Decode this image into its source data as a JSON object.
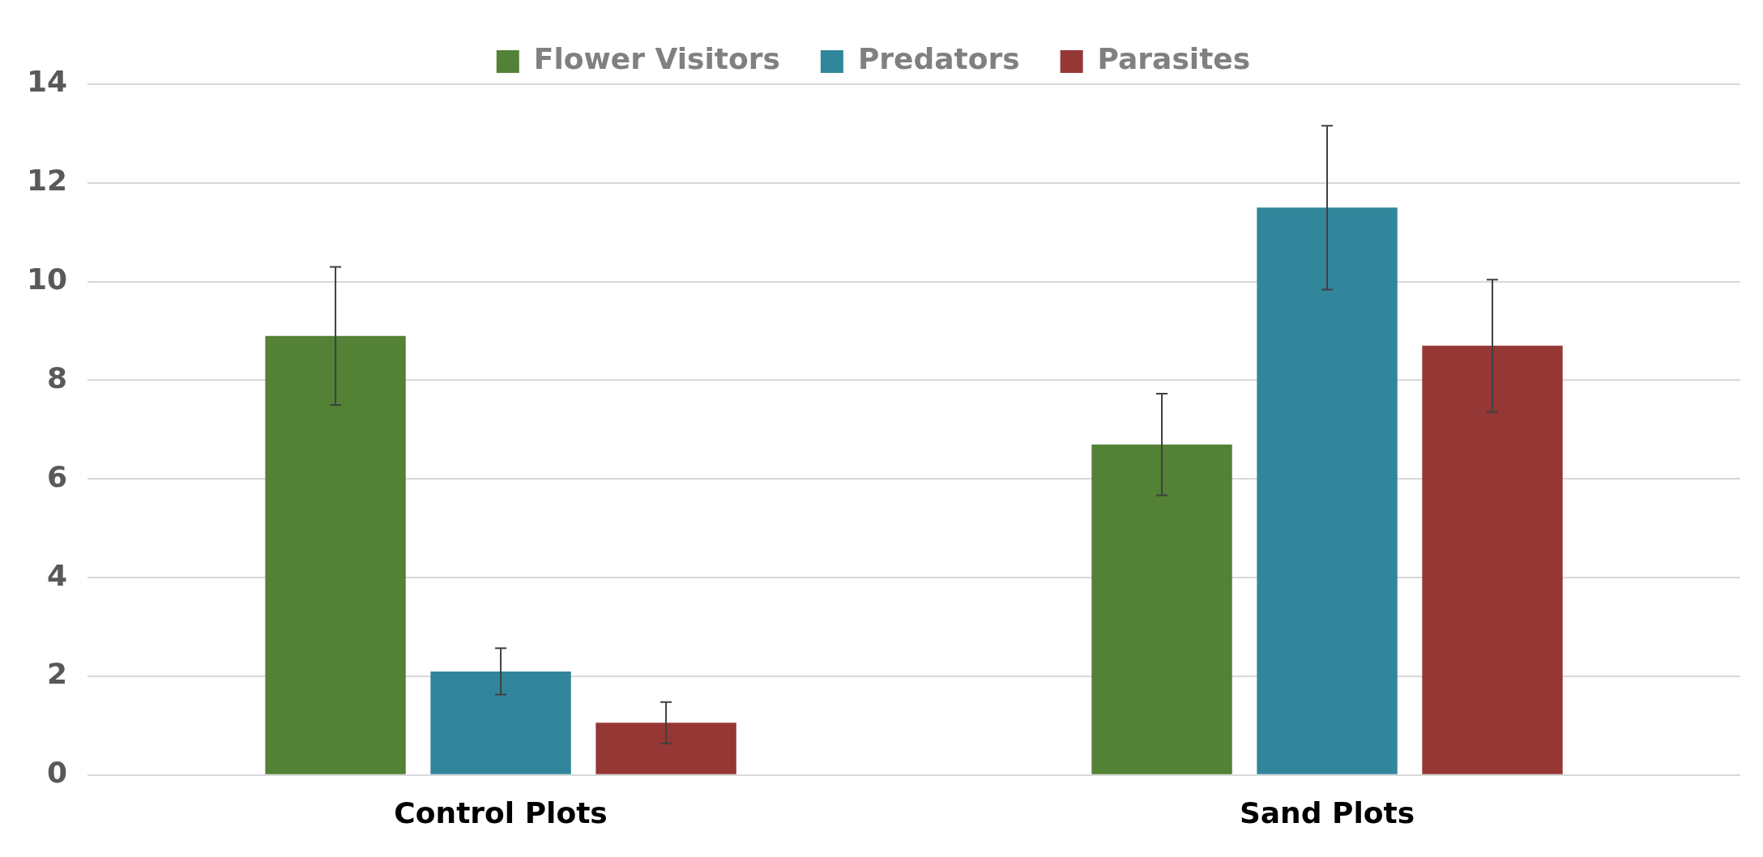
{
  "chart_data": {
    "type": "bar",
    "categories": [
      "Control Plots",
      "Sand Plots"
    ],
    "series": [
      {
        "name": "Flower Visitors",
        "color": "#538135",
        "values": [
          8.9,
          6.7
        ],
        "errors": [
          1.4,
          1.03
        ]
      },
      {
        "name": "Predators",
        "color": "#31869b",
        "values": [
          2.1,
          11.5
        ],
        "errors": [
          0.47,
          1.66
        ]
      },
      {
        "name": "Parasites",
        "color": "#953735",
        "values": [
          1.06,
          8.7
        ],
        "errors": [
          0.42,
          1.34
        ]
      }
    ],
    "ylim": [
      0,
      14
    ],
    "yticks": [
      0,
      2,
      4,
      6,
      8,
      10,
      12,
      14
    ],
    "grid": "y",
    "legend": "top"
  }
}
